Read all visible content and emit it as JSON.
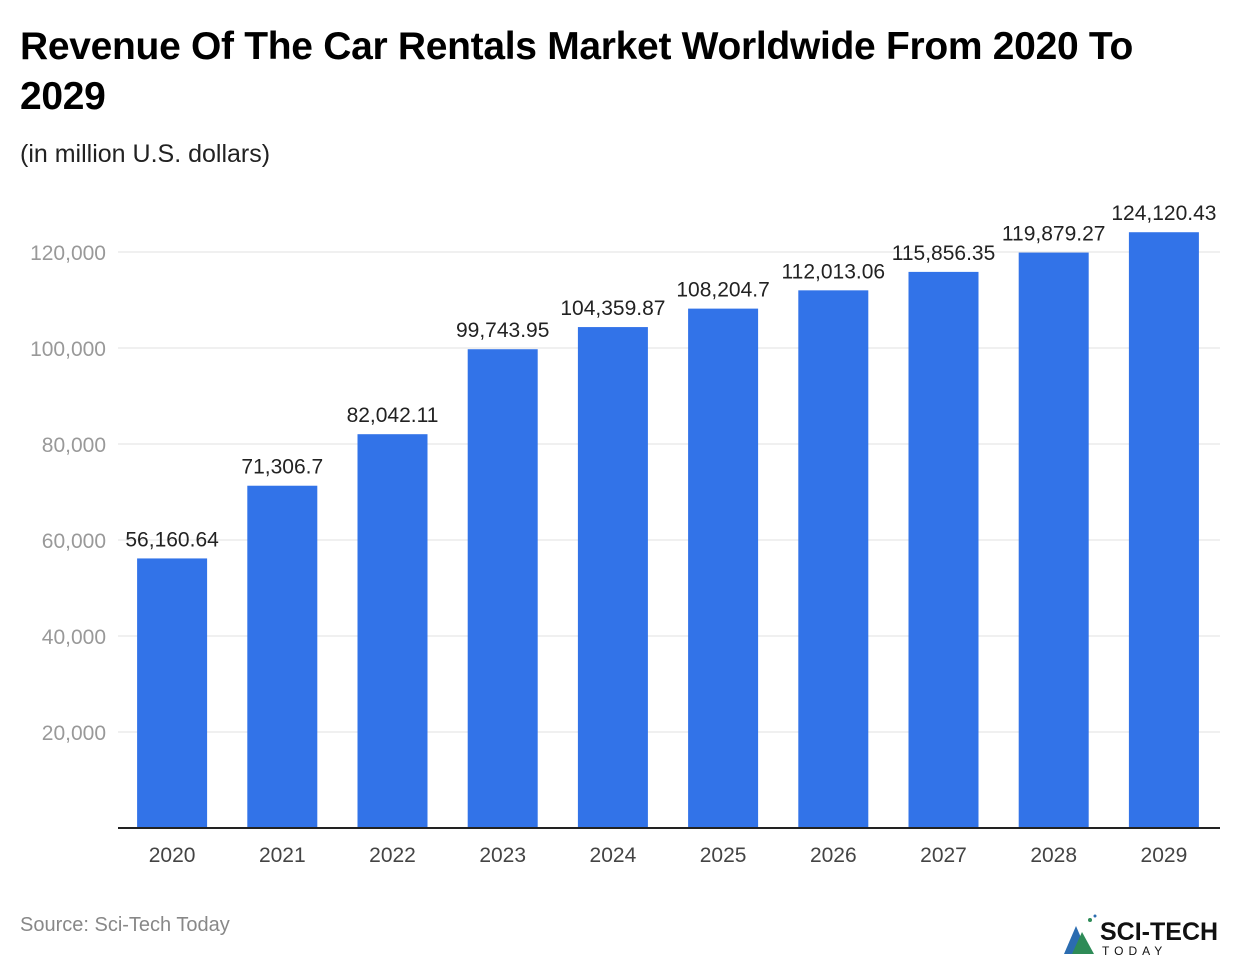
{
  "title": "Revenue Of The Car Rentals Market Worldwide From 2020 To 2029",
  "subtitle": "(in million U.S. dollars)",
  "source": "Source: Sci-Tech Today",
  "logo": {
    "text": "SCI-TECH",
    "subtext": "TODAY"
  },
  "colors": {
    "bar": "#3273E8",
    "grid": "#E0E0E0",
    "axis": "#222222",
    "tick_text": "#999999"
  },
  "chart_data": {
    "type": "bar",
    "title": "Revenue Of The Car Rentals Market Worldwide From 2020 To 2029",
    "subtitle": "(in million U.S. dollars)",
    "categories": [
      "2020",
      "2021",
      "2022",
      "2023",
      "2024",
      "2025",
      "2026",
      "2027",
      "2028",
      "2029"
    ],
    "values": [
      56160.64,
      71306.7,
      82042.11,
      99743.95,
      104359.87,
      108204.7,
      112013.06,
      115856.35,
      119879.27,
      124120.43
    ],
    "data_labels": [
      "56,160.64",
      "71,306.7",
      "82,042.11",
      "99,743.95",
      "104,359.87",
      "108,204.7",
      "112,013.06",
      "115,856.35",
      "119,879.27",
      "124,120.43"
    ],
    "yticks": [
      20000,
      40000,
      60000,
      80000,
      100000,
      120000
    ],
    "ytick_labels": [
      "20,000",
      "40,000",
      "60,000",
      "80,000",
      "100,000",
      "120,000"
    ],
    "ylim": [
      0,
      120000
    ],
    "grid": true,
    "legend": "none"
  }
}
